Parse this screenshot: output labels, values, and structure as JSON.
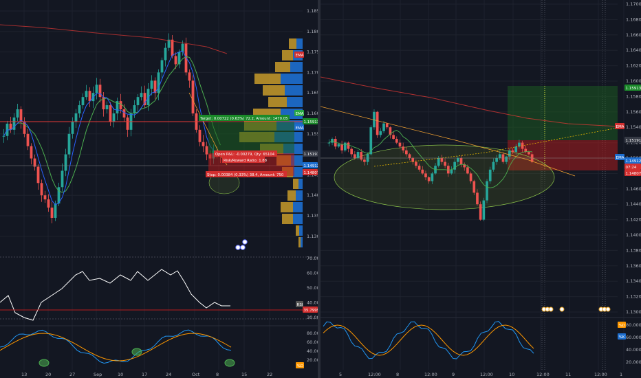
{
  "colors": {
    "background": "#131722",
    "grid": "#1e222d",
    "up": "#26a69a",
    "down": "#ef5350",
    "ema": "#e53935",
    "sma_green": "#4caf50",
    "sma_blue": "#2962ff",
    "trend": "#f0a030",
    "target_zone": "#1b5e20",
    "stop_zone": "#b71c1c",
    "stoch_k": "#2196f3",
    "stoch_d": "#ff9800",
    "rsi_line": "#ffffff"
  },
  "left_chart": {
    "price_axis": [
      "1.18500",
      "1.18000",
      "1.17500",
      "1.17000",
      "1.16500",
      "1.16000",
      "1.15500",
      "1.15000",
      "1.14500",
      "1.14000",
      "1.13500",
      "1.13000"
    ],
    "badges": {
      "ema": "EMA",
      "ema2": "EMA",
      "p1": "1.15913",
      "p2": "1.15191",
      "p3": "1.14912",
      "p4": "1.14807"
    },
    "trade": {
      "target": "Target: 0.00722 (0.63%) 72.2, Amount: 1470.05",
      "open_pnl": "Open P&L: -0.00279, Qty: 65104",
      "rr": "Risk/Reward Ratio: 1.88",
      "stop": "Stop: 0.00384 (0.33%) 38.4, Amount: 750"
    },
    "rsi_axis": [
      "70.0000",
      "60.0000",
      "50.0000",
      "40.0000",
      "30.0000"
    ],
    "rsi_badges": {
      "label": "RSI",
      "value": "35.7999"
    },
    "stoch_axis": [
      "80.0000",
      "60.0000",
      "40.0000",
      "20.0000"
    ],
    "stoch_badge": "%D",
    "time_axis": [
      "13",
      "20",
      "27",
      "Sep",
      "10",
      "17",
      "24",
      "Oct",
      "8",
      "15",
      "22"
    ]
  },
  "right_chart": {
    "price_axis": [
      "1.17000",
      "1.16800",
      "1.16600",
      "1.16400",
      "1.16200",
      "1.16000",
      "1.15800",
      "1.15600",
      "1.15400",
      "1.15200",
      "1.15000",
      "1.14800",
      "1.14600",
      "1.14400",
      "1.14200",
      "1.14000",
      "1.13800",
      "1.13600",
      "1.13400",
      "1.13200",
      "1.13000"
    ],
    "badges": {
      "p1": "1.15913",
      "ema": "EMA",
      "p2": "1.15191",
      "ema2": "EMA",
      "p3": "1.14912",
      "countdown": "07:24",
      "p4": "1.14807"
    },
    "stoch_axis": [
      "80.0000",
      "60.0000",
      "40.0000",
      "20.0000"
    ],
    "stoch_badges": {
      "d": "%D",
      "k": "%K"
    },
    "time_axis": [
      "5",
      "12:00",
      "8",
      "12:00",
      "9",
      "12:00",
      "10",
      "12:00",
      "11",
      "12:00",
      "1"
    ]
  }
}
